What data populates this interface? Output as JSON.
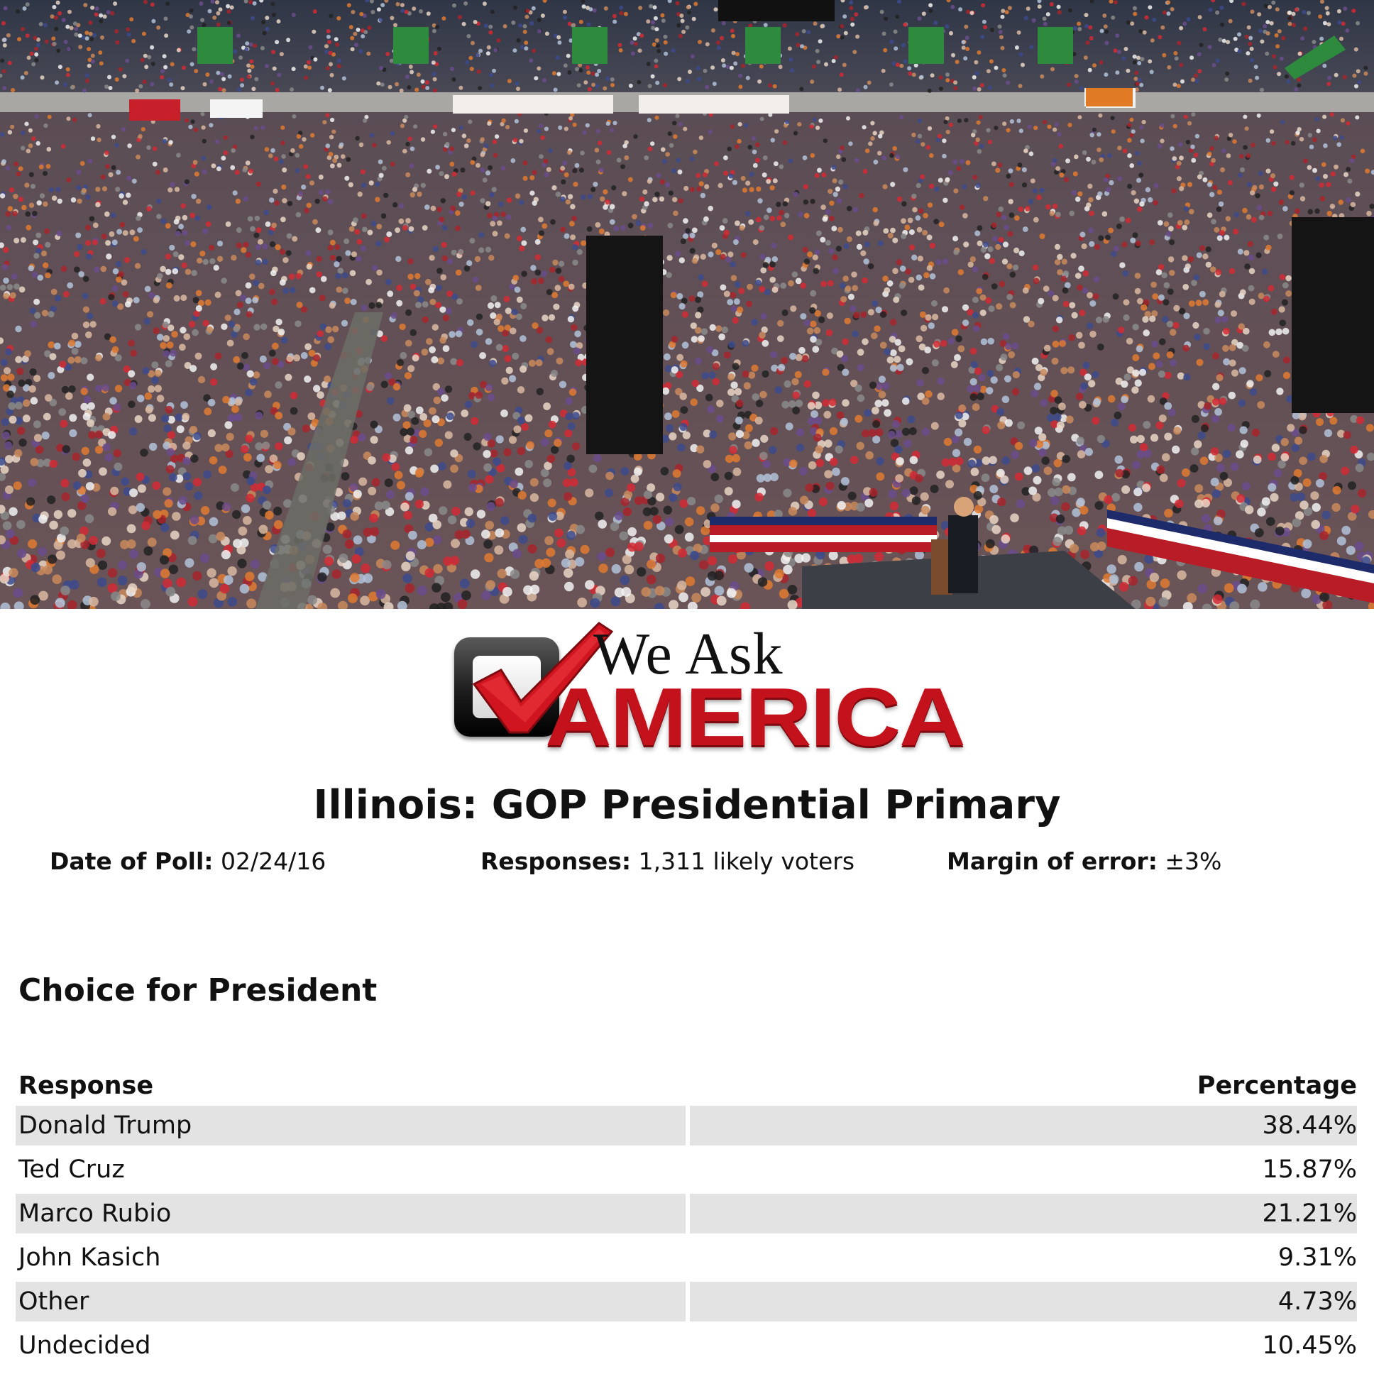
{
  "logo": {
    "line1": "We Ask",
    "line2": "AMERICA"
  },
  "title": "Illinois: GOP Presidential Primary",
  "meta": {
    "date_label": "Date of Poll:",
    "date_value": "02/24/16",
    "responses_label": "Responses:",
    "responses_value": "1,311 likely voters",
    "moe_label": "Margin of error:",
    "moe_value": "±3%"
  },
  "section_title": "Choice for President",
  "table": {
    "headers": {
      "response": "Response",
      "percentage": "Percentage"
    },
    "rows": [
      {
        "response": "Donald Trump",
        "percentage": "38.44%"
      },
      {
        "response": "Ted Cruz",
        "percentage": "15.87%"
      },
      {
        "response": "Marco Rubio",
        "percentage": "21.21%"
      },
      {
        "response": "John Kasich",
        "percentage": "9.31%"
      },
      {
        "response": "Other",
        "percentage": "4.73%"
      },
      {
        "response": "Undecided",
        "percentage": "10.45%"
      }
    ]
  },
  "colors": {
    "brand_red": "#c4121c",
    "row_shade": "#e3e3e3"
  }
}
